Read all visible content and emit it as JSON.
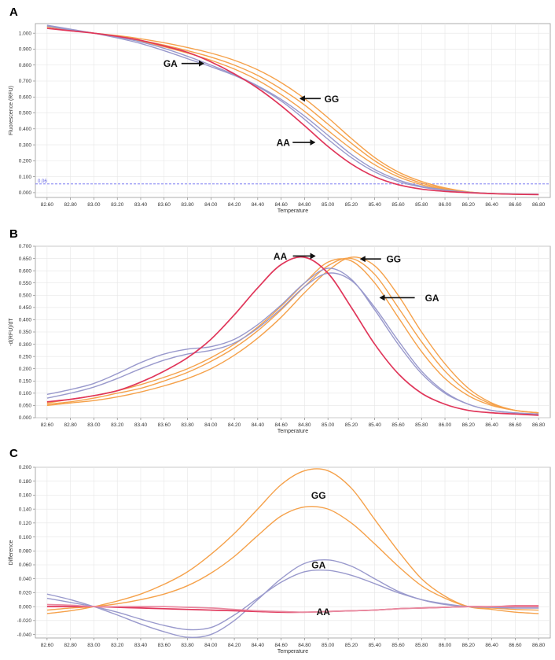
{
  "chart_data": [
    {
      "panel": "A",
      "type": "line",
      "xlabel": "Temperature",
      "ylabel": "Fluorescence (RFU)",
      "xlim": [
        82.5,
        86.9
      ],
      "ylim": [
        -0.03,
        1.06
      ],
      "x_ticks": [
        "82.60",
        "82.80",
        "83.00",
        "83.20",
        "83.40",
        "83.60",
        "83.80",
        "84.00",
        "84.20",
        "84.40",
        "84.60",
        "84.80",
        "85.00",
        "85.20",
        "85.40",
        "85.60",
        "85.80",
        "86.00",
        "86.20",
        "86.40",
        "86.60",
        "86.80"
      ],
      "y_ticks": [
        "0.000",
        "0.100",
        "0.200",
        "0.300",
        "0.400",
        "0.500",
        "0.600",
        "0.700",
        "0.800",
        "0.900",
        "1.000"
      ],
      "threshold": {
        "value": 0.055,
        "label": "0.06"
      },
      "x": [
        82.6,
        82.8,
        83.0,
        83.2,
        83.4,
        83.6,
        83.8,
        84.0,
        84.2,
        84.4,
        84.6,
        84.8,
        85.0,
        85.2,
        85.4,
        85.6,
        85.8,
        86.0,
        86.2,
        86.4,
        86.6,
        86.8
      ],
      "series": [
        {
          "genotype": "GG",
          "color": "#f5a14a",
          "values": [
            1.04,
            1.02,
            1.0,
            0.985,
            0.965,
            0.94,
            0.91,
            0.875,
            0.83,
            0.77,
            0.69,
            0.59,
            0.47,
            0.34,
            0.22,
            0.13,
            0.07,
            0.03,
            0.005,
            -0.005,
            -0.01,
            -0.012
          ]
        },
        {
          "genotype": "GG",
          "color": "#f5a14a",
          "values": [
            1.04,
            1.02,
            1.0,
            0.98,
            0.955,
            0.925,
            0.89,
            0.85,
            0.8,
            0.735,
            0.65,
            0.55,
            0.43,
            0.31,
            0.2,
            0.115,
            0.06,
            0.025,
            0.005,
            -0.005,
            -0.01,
            -0.012
          ]
        },
        {
          "genotype": "GG",
          "color": "#f5a14a",
          "values": [
            1.04,
            1.02,
            1.0,
            0.98,
            0.95,
            0.915,
            0.875,
            0.83,
            0.775,
            0.705,
            0.615,
            0.51,
            0.39,
            0.275,
            0.175,
            0.1,
            0.05,
            0.02,
            0.003,
            -0.006,
            -0.01,
            -0.012
          ]
        },
        {
          "genotype": "GA",
          "color": "#9999cc",
          "values": [
            1.05,
            1.025,
            1.0,
            0.97,
            0.935,
            0.89,
            0.84,
            0.79,
            0.735,
            0.665,
            0.575,
            0.46,
            0.335,
            0.22,
            0.13,
            0.07,
            0.035,
            0.015,
            0.002,
            -0.005,
            -0.008,
            -0.01
          ]
        },
        {
          "genotype": "GA",
          "color": "#9999cc",
          "values": [
            1.045,
            1.02,
            1.0,
            0.975,
            0.945,
            0.905,
            0.855,
            0.8,
            0.74,
            0.67,
            0.585,
            0.48,
            0.36,
            0.24,
            0.145,
            0.08,
            0.04,
            0.017,
            0.002,
            -0.005,
            -0.008,
            -0.01
          ]
        },
        {
          "genotype": "AA",
          "color": "#e0365a",
          "values": [
            1.03,
            1.015,
            1.0,
            0.98,
            0.955,
            0.92,
            0.88,
            0.82,
            0.745,
            0.655,
            0.545,
            0.42,
            0.29,
            0.18,
            0.1,
            0.05,
            0.022,
            0.008,
            0.0,
            -0.006,
            -0.01,
            -0.012
          ]
        }
      ],
      "annotations": [
        {
          "label": "GA",
          "at": [
            83.95,
            0.81
          ]
        },
        {
          "label": "GG",
          "at": [
            84.75,
            0.59
          ]
        },
        {
          "label": "AA",
          "at": [
            84.9,
            0.315
          ]
        }
      ]
    },
    {
      "panel": "B",
      "type": "line",
      "xlabel": "Temperature",
      "ylabel": "-d(RFU)/dT",
      "xlim": [
        82.5,
        86.9
      ],
      "ylim": [
        0.0,
        0.7
      ],
      "x_ticks": [
        "82.60",
        "82.80",
        "83.00",
        "83.20",
        "83.40",
        "83.60",
        "83.80",
        "84.00",
        "84.20",
        "84.40",
        "84.60",
        "84.80",
        "85.00",
        "85.20",
        "85.40",
        "85.60",
        "85.80",
        "86.00",
        "86.20",
        "86.40",
        "86.60",
        "86.80"
      ],
      "y_ticks": [
        "0.000",
        "0.050",
        "0.100",
        "0.150",
        "0.200",
        "0.250",
        "0.300",
        "0.350",
        "0.400",
        "0.450",
        "0.500",
        "0.550",
        "0.600",
        "0.650",
        "0.700"
      ],
      "x": [
        82.6,
        82.8,
        83.0,
        83.2,
        83.4,
        83.6,
        83.8,
        84.0,
        84.2,
        84.4,
        84.6,
        84.8,
        85.0,
        85.2,
        85.4,
        85.6,
        85.8,
        86.0,
        86.2,
        86.4,
        86.6,
        86.8
      ],
      "series": [
        {
          "genotype": "GG",
          "color": "#f5a14a",
          "values": [
            0.06,
            0.075,
            0.09,
            0.11,
            0.135,
            0.165,
            0.2,
            0.245,
            0.3,
            0.37,
            0.455,
            0.55,
            0.635,
            0.64,
            0.55,
            0.41,
            0.27,
            0.16,
            0.09,
            0.05,
            0.03,
            0.02
          ]
        },
        {
          "genotype": "GG",
          "color": "#f5a14a",
          "values": [
            0.055,
            0.065,
            0.08,
            0.1,
            0.12,
            0.15,
            0.185,
            0.23,
            0.285,
            0.355,
            0.44,
            0.535,
            0.62,
            0.65,
            0.585,
            0.45,
            0.31,
            0.19,
            0.105,
            0.055,
            0.03,
            0.02
          ]
        },
        {
          "genotype": "GG",
          "color": "#f5a14a",
          "values": [
            0.05,
            0.06,
            0.07,
            0.085,
            0.105,
            0.13,
            0.16,
            0.2,
            0.255,
            0.325,
            0.41,
            0.51,
            0.6,
            0.655,
            0.62,
            0.5,
            0.35,
            0.22,
            0.12,
            0.06,
            0.03,
            0.02
          ]
        },
        {
          "genotype": "GA",
          "color": "#9999cc",
          "values": [
            0.095,
            0.115,
            0.14,
            0.18,
            0.225,
            0.26,
            0.28,
            0.29,
            0.32,
            0.38,
            0.46,
            0.55,
            0.61,
            0.565,
            0.44,
            0.3,
            0.18,
            0.1,
            0.055,
            0.03,
            0.02,
            0.015
          ]
        },
        {
          "genotype": "GA",
          "color": "#9999cc",
          "values": [
            0.08,
            0.1,
            0.125,
            0.16,
            0.2,
            0.235,
            0.26,
            0.275,
            0.305,
            0.365,
            0.445,
            0.535,
            0.59,
            0.56,
            0.45,
            0.315,
            0.19,
            0.105,
            0.055,
            0.03,
            0.02,
            0.015
          ]
        },
        {
          "genotype": "AA",
          "color": "#e0365a",
          "values": [
            0.065,
            0.075,
            0.09,
            0.11,
            0.145,
            0.19,
            0.245,
            0.32,
            0.42,
            0.53,
            0.625,
            0.655,
            0.59,
            0.45,
            0.3,
            0.18,
            0.1,
            0.055,
            0.03,
            0.02,
            0.015,
            0.01
          ]
        }
      ],
      "annotations": [
        {
          "label": "AA",
          "at": [
            84.62,
            0.66
          ]
        },
        {
          "label": "GG",
          "at": [
            85.32,
            0.648
          ]
        },
        {
          "label": "GA",
          "at": [
            85.5,
            0.49
          ]
        }
      ]
    },
    {
      "panel": "C",
      "type": "line",
      "xlabel": "Temperature",
      "ylabel": "Difference",
      "xlim": [
        82.5,
        86.9
      ],
      "ylim": [
        -0.045,
        0.2
      ],
      "x_ticks": [
        "82.60",
        "82.80",
        "83.00",
        "83.20",
        "83.40",
        "83.60",
        "83.80",
        "84.00",
        "84.20",
        "84.40",
        "84.60",
        "84.80",
        "85.00",
        "85.20",
        "85.40",
        "85.60",
        "85.80",
        "86.00",
        "86.20",
        "86.40",
        "86.60",
        "86.80"
      ],
      "y_ticks": [
        "-0.040",
        "-0.020",
        "0.000",
        "0.020",
        "0.040",
        "0.060",
        "0.080",
        "0.100",
        "0.120",
        "0.140",
        "0.160",
        "0.180",
        "0.200"
      ],
      "x": [
        82.6,
        82.8,
        83.0,
        83.2,
        83.4,
        83.6,
        83.8,
        84.0,
        84.2,
        84.4,
        84.6,
        84.8,
        85.0,
        85.2,
        85.4,
        85.6,
        85.8,
        86.0,
        86.2,
        86.4,
        86.6,
        86.8
      ],
      "series": [
        {
          "genotype": "GG",
          "color": "#f5a14a",
          "values": [
            -0.01,
            -0.006,
            0.0,
            0.008,
            0.018,
            0.032,
            0.05,
            0.075,
            0.105,
            0.14,
            0.175,
            0.195,
            0.195,
            0.17,
            0.125,
            0.08,
            0.04,
            0.015,
            0.0,
            -0.004,
            -0.008,
            -0.01
          ]
        },
        {
          "genotype": "GG",
          "color": "#f5a14a",
          "values": [
            -0.005,
            -0.002,
            0.0,
            0.004,
            0.01,
            0.018,
            0.03,
            0.048,
            0.072,
            0.102,
            0.13,
            0.143,
            0.14,
            0.12,
            0.09,
            0.058,
            0.03,
            0.012,
            0.0,
            -0.002,
            -0.004,
            -0.005
          ]
        },
        {
          "genotype": "GA",
          "color": "#9999cc",
          "values": [
            0.018,
            0.01,
            0.0,
            -0.012,
            -0.025,
            -0.036,
            -0.044,
            -0.04,
            -0.02,
            0.01,
            0.04,
            0.062,
            0.067,
            0.058,
            0.04,
            0.022,
            0.01,
            0.003,
            0.0,
            -0.001,
            -0.002,
            -0.002
          ]
        },
        {
          "genotype": "GA",
          "color": "#9999cc",
          "values": [
            0.012,
            0.006,
            0.0,
            -0.008,
            -0.018,
            -0.027,
            -0.033,
            -0.03,
            -0.012,
            0.012,
            0.035,
            0.05,
            0.052,
            0.045,
            0.033,
            0.02,
            0.01,
            0.004,
            0.0,
            -0.001,
            -0.002,
            -0.002
          ]
        },
        {
          "genotype": "AA",
          "color": "#e0365a",
          "values": [
            0.0,
            0.0,
            0.0,
            -0.001,
            -0.002,
            -0.003,
            -0.004,
            -0.005,
            -0.006,
            -0.007,
            -0.008,
            -0.008,
            -0.007,
            -0.006,
            -0.005,
            -0.003,
            -0.002,
            -0.001,
            0.0,
            0.0,
            0.001,
            0.001
          ]
        },
        {
          "genotype": "AA",
          "color": "#e88aa0",
          "values": [
            0.003,
            0.002,
            0.0,
            0.0,
            0.0,
            0.0,
            -0.001,
            -0.002,
            -0.004,
            -0.006,
            -0.007,
            -0.008,
            -0.007,
            -0.006,
            -0.005,
            -0.003,
            -0.002,
            -0.001,
            0.0,
            0.0,
            0.0,
            0.0
          ]
        }
      ],
      "annotations": [
        {
          "label": "GG",
          "at": [
            84.92,
            0.16
          ]
        },
        {
          "label": "GA",
          "at": [
            84.92,
            0.06
          ]
        },
        {
          "label": "AA",
          "at": [
            84.96,
            -0.007
          ]
        }
      ]
    }
  ]
}
